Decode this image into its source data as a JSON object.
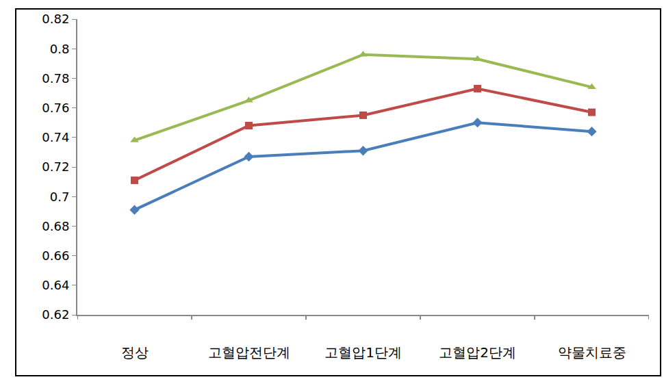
{
  "chart_data": {
    "type": "line",
    "categories": [
      "정상",
      "고혈압전단계",
      "고혈압1단계",
      "고혈압2단계",
      "약물치료중"
    ],
    "series": [
      {
        "color": "#4a7ebb",
        "marker": "diamond",
        "values": [
          0.691,
          0.727,
          0.731,
          0.75,
          0.744
        ]
      },
      {
        "color": "#be4b48",
        "marker": "square",
        "values": [
          0.711,
          0.748,
          0.755,
          0.773,
          0.757
        ]
      },
      {
        "color": "#98b954",
        "marker": "triangle-up",
        "values": [
          0.738,
          0.765,
          0.796,
          0.793,
          0.774
        ]
      }
    ],
    "ylim": [
      0.62,
      0.82
    ],
    "yticks": [
      0.62,
      0.64,
      0.66,
      0.68,
      0.7,
      0.72,
      0.74,
      0.76,
      0.78,
      0.8,
      0.82
    ],
    "grid": false
  }
}
